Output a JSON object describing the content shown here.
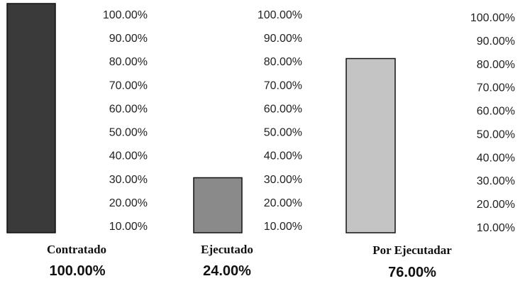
{
  "chart_data": [
    {
      "type": "bar",
      "categories": [
        "Contratado"
      ],
      "values": [
        100.0
      ],
      "value_label": "100.00%",
      "color": "#3a3a3a",
      "ylim": [
        0,
        100
      ],
      "yticks": [
        "10.00%",
        "20.00%",
        "30.00%",
        "40.00%",
        "50.00%",
        "60.00%",
        "70.00%",
        "80.00%",
        "90.00%",
        "100.00%"
      ]
    },
    {
      "type": "bar",
      "categories": [
        "Ejecutado"
      ],
      "values": [
        24.0
      ],
      "value_label": "24.00%",
      "color": "#8a8a8a",
      "ylim": [
        0,
        100
      ],
      "yticks": [
        "10.00%",
        "20.00%",
        "30.00%",
        "40.00%",
        "50.00%",
        "60.00%",
        "70.00%",
        "80.00%",
        "90.00%",
        "100.00%"
      ]
    },
    {
      "type": "bar",
      "categories": [
        "Por Ejecutadar"
      ],
      "values": [
        76.0
      ],
      "value_label": "76.00%",
      "color": "#c4c4c4",
      "ylim": [
        0,
        100
      ],
      "yticks": [
        "10.00%",
        "20.00%",
        "30.00%",
        "40.00%",
        "50.00%",
        "60.00%",
        "70.00%",
        "80.00%",
        "90.00%",
        "100.00%"
      ]
    }
  ]
}
